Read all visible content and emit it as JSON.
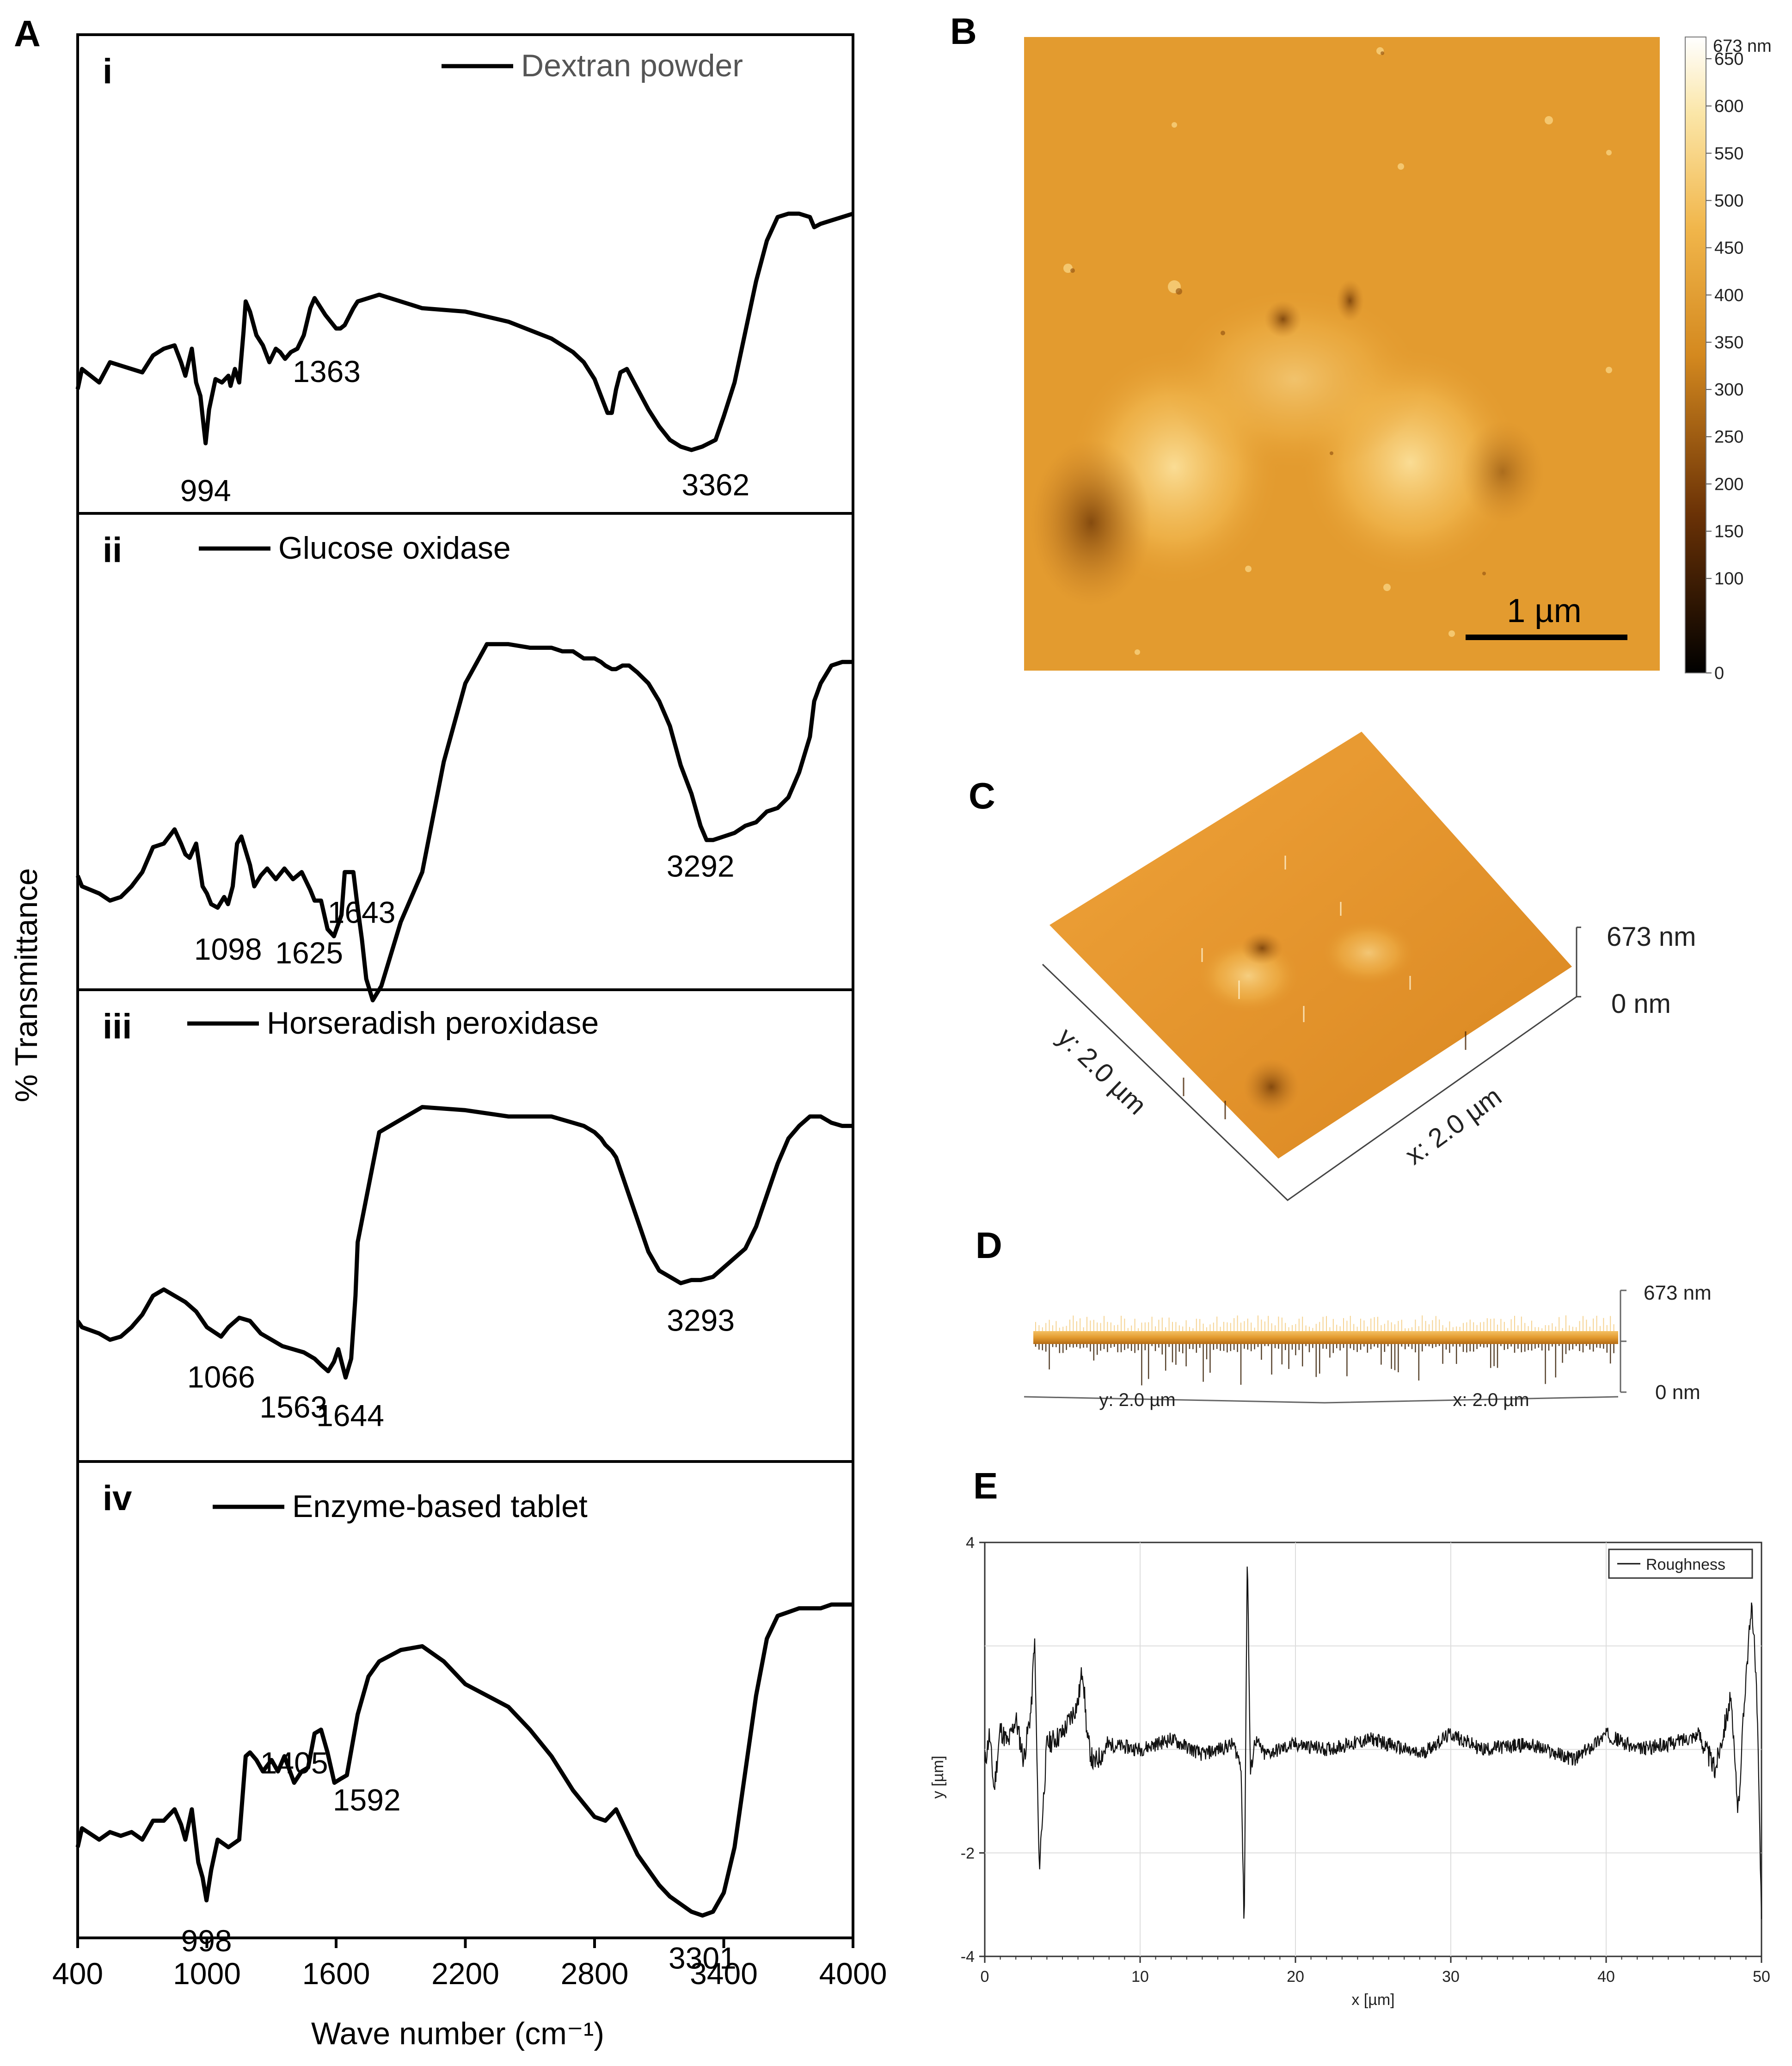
{
  "panel_labels": {
    "A": "A",
    "B": "B",
    "C": "C",
    "D": "D",
    "E": "E"
  },
  "ftir": {
    "ylabel": "% Transmittance",
    "xlabel": "Wave number (cm⁻¹)",
    "xlim": [
      400,
      4000
    ],
    "xticks": [
      "400",
      "1000",
      "1600",
      "2200",
      "2800",
      "3400",
      "4000"
    ],
    "spectra": [
      {
        "roman": "i",
        "legend": "Dextran powder",
        "peaks": [
          {
            "wn": 994,
            "label": "994"
          },
          {
            "wn": 1363,
            "label": "1363"
          },
          {
            "wn": 3362,
            "label": "3362"
          }
        ]
      },
      {
        "roman": "ii",
        "legend": "Glucose oxidase",
        "peaks": [
          {
            "wn": 1098,
            "label": "1098"
          },
          {
            "wn": 1625,
            "label": "1625"
          },
          {
            "wn": 1643,
            "label": "1643"
          },
          {
            "wn": 3292,
            "label": "3292"
          }
        ]
      },
      {
        "roman": "iii",
        "legend": "Horseradish peroxidase",
        "peaks": [
          {
            "wn": 1066,
            "label": "1066"
          },
          {
            "wn": 1563,
            "label": "1563"
          },
          {
            "wn": 1644,
            "label": "1644"
          },
          {
            "wn": 3293,
            "label": "3293"
          }
        ]
      },
      {
        "roman": "iv",
        "legend": "Enzyme-based tablet",
        "peaks": [
          {
            "wn": 998,
            "label": "998"
          },
          {
            "wn": 1405,
            "label": "1405"
          },
          {
            "wn": 1592,
            "label": "1592"
          },
          {
            "wn": 3301,
            "label": "3301"
          }
        ]
      }
    ]
  },
  "afm2d": {
    "scalebar": "1 µm",
    "colorbar_max": "673 nm",
    "colorbar_ticks": [
      "650",
      "600",
      "550",
      "500",
      "450",
      "400",
      "350",
      "300",
      "250",
      "200",
      "150",
      "100",
      "0"
    ]
  },
  "afm3d": {
    "z_max": "673 nm",
    "z_min": "0 nm",
    "y_axis": "y: 2.0 µm",
    "x_axis": "x: 2.0 µm"
  },
  "afm_side": {
    "z_max": "673 nm",
    "z_min": "0 nm",
    "y_axis": "y: 2.0 µm",
    "x_axis": "x: 2.0 µm"
  },
  "colors": {
    "afm_base": "#e39b2f",
    "afm_light": "#f6c867",
    "afm_dark": "#8a4f12",
    "line": "#000000"
  },
  "chart_data": [
    {
      "type": "line",
      "title": "FTIR spectra",
      "xlabel": "Wave number (cm⁻¹)",
      "ylabel": "% Transmittance",
      "xlim": [
        400,
        4000
      ],
      "series": [
        {
          "name": "Dextran powder",
          "x": [
            400,
            420,
            500,
            550,
            600,
            650,
            700,
            750,
            800,
            850,
            880,
            900,
            930,
            950,
            970,
            980,
            994,
            1010,
            1040,
            1070,
            1100,
            1110,
            1130,
            1150,
            1170,
            1180,
            1200,
            1230,
            1260,
            1290,
            1320,
            1340,
            1363,
            1390,
            1420,
            1450,
            1480,
            1500,
            1550,
            1600,
            1620,
            1640,
            1680,
            1700,
            1800,
            2000,
            2200,
            2400,
            2600,
            2700,
            2750,
            2800,
            2830,
            2860,
            2880,
            2900,
            2920,
            2950,
            3000,
            3050,
            3100,
            3150,
            3200,
            3250,
            3300,
            3362,
            3400,
            3450,
            3500,
            3550,
            3600,
            3650,
            3700,
            3750,
            3800,
            3820,
            3850,
            3900,
            3950,
            4000
          ],
          "y": [
            82,
            76,
            80,
            74,
            75,
            76,
            77,
            72,
            70,
            69,
            74,
            78,
            70,
            80,
            84,
            90,
            98,
            88,
            79,
            80,
            78,
            81,
            76,
            80,
            65,
            56,
            59,
            66,
            69,
            74,
            70,
            71,
            73,
            71,
            70,
            66,
            58,
            55,
            60,
            64,
            64,
            63,
            58,
            56,
            54,
            58,
            59,
            62,
            67,
            71,
            74,
            79,
            84,
            89,
            89,
            82,
            77,
            76,
            82,
            88,
            93,
            97,
            99,
            100,
            99,
            97,
            90,
            80,
            65,
            50,
            38,
            31,
            30,
            30,
            31,
            34,
            33,
            32,
            31,
            30
          ]
        },
        {
          "name": "Glucose oxidase",
          "x": [
            400,
            420,
            500,
            550,
            600,
            650,
            700,
            750,
            800,
            850,
            880,
            900,
            920,
            950,
            980,
            1000,
            1020,
            1050,
            1080,
            1098,
            1120,
            1140,
            1160,
            1180,
            1200,
            1220,
            1250,
            1280,
            1320,
            1360,
            1400,
            1440,
            1480,
            1500,
            1530,
            1560,
            1590,
            1625,
            1640,
            1680,
            1700,
            1720,
            1740,
            1770,
            1810,
            1900,
            2000,
            2100,
            2200,
            2300,
            2400,
            2500,
            2550,
            2600,
            2650,
            2700,
            2750,
            2780,
            2800,
            2830,
            2850,
            2880,
            2900,
            2930,
            2960,
            3000,
            3050,
            3100,
            3150,
            3200,
            3250,
            3292,
            3320,
            3350,
            3400,
            3450,
            3500,
            3550,
            3600,
            3650,
            3700,
            3750,
            3800,
            3820,
            3850,
            3900,
            3950,
            4000
          ],
          "y": [
            79,
            82,
            84,
            86,
            85,
            82,
            78,
            71,
            70,
            66,
            70,
            73,
            74,
            70,
            82,
            84,
            87,
            88,
            85,
            87,
            82,
            70,
            68,
            72,
            76,
            82,
            79,
            77,
            80,
            77,
            80,
            78,
            83,
            86,
            86,
            94,
            96,
            90,
            78,
            78,
            88,
            97,
            108,
            114,
            110,
            92,
            78,
            47,
            25,
            14,
            14,
            15,
            15,
            15,
            16,
            16,
            18,
            18,
            18,
            19,
            20,
            21,
            21,
            20,
            20,
            22,
            25,
            30,
            37,
            48,
            56,
            65,
            69,
            69,
            68,
            67,
            65,
            64,
            61,
            60,
            57,
            50,
            40,
            30,
            25,
            20,
            19,
            19
          ]
        },
        {
          "name": "Horseradish peroxidase",
          "x": [
            400,
            420,
            500,
            550,
            600,
            650,
            700,
            750,
            800,
            850,
            900,
            950,
            1000,
            1066,
            1100,
            1150,
            1200,
            1250,
            1300,
            1350,
            1400,
            1450,
            1500,
            1530,
            1563,
            1590,
            1610,
            1644,
            1670,
            1690,
            1700,
            1800,
            2000,
            2200,
            2400,
            2600,
            2700,
            2750,
            2800,
            2830,
            2850,
            2880,
            2900,
            2930,
            2960,
            3000,
            3050,
            3100,
            3150,
            3200,
            3250,
            3293,
            3350,
            3400,
            3450,
            3500,
            3550,
            3600,
            3650,
            3700,
            3750,
            3800,
            3850,
            3900,
            3950,
            4000
          ],
          "y": [
            80,
            82,
            84,
            86,
            85,
            82,
            78,
            72,
            70,
            72,
            74,
            77,
            82,
            85,
            82,
            79,
            80,
            84,
            86,
            88,
            89,
            90,
            92,
            94,
            96,
            93,
            89,
            98,
            92,
            72,
            55,
            20,
            12,
            13,
            15,
            15,
            17,
            18,
            20,
            22,
            24,
            26,
            28,
            34,
            40,
            48,
            58,
            64,
            66,
            68,
            67,
            67,
            66,
            63,
            60,
            57,
            50,
            40,
            30,
            22,
            18,
            15,
            15,
            17,
            18,
            18
          ]
        },
        {
          "name": "Enzyme-based tablet",
          "x": [
            400,
            420,
            500,
            550,
            600,
            650,
            700,
            750,
            800,
            850,
            880,
            900,
            930,
            960,
            980,
            998,
            1020,
            1050,
            1100,
            1150,
            1180,
            1200,
            1230,
            1260,
            1300,
            1330,
            1360,
            1405,
            1440,
            1470,
            1500,
            1530,
            1560,
            1592,
            1620,
            1650,
            1700,
            1750,
            1800,
            1900,
            2000,
            2100,
            2200,
            2300,
            2400,
            2500,
            2600,
            2700,
            2800,
            2850,
            2900,
            2950,
            3000,
            3050,
            3100,
            3150,
            3200,
            3250,
            3301,
            3350,
            3400,
            3450,
            3500,
            3550,
            3600,
            3650,
            3700,
            3750,
            3800,
            3850,
            3900,
            3950,
            4000
          ],
          "y": [
            80,
            75,
            78,
            76,
            77,
            76,
            78,
            73,
            73,
            70,
            74,
            78,
            70,
            84,
            88,
            94,
            86,
            78,
            80,
            78,
            56,
            55,
            57,
            60,
            57,
            60,
            56,
            63,
            60,
            59,
            50,
            49,
            55,
            63,
            62,
            61,
            45,
            35,
            31,
            28,
            27,
            31,
            37,
            40,
            43,
            49,
            56,
            65,
            72,
            73,
            70,
            76,
            82,
            86,
            90,
            93,
            95,
            97,
            98,
            97,
            92,
            80,
            60,
            40,
            25,
            19,
            18,
            17,
            17,
            17,
            16,
            16,
            16
          ]
        }
      ]
    },
    {
      "type": "line",
      "title": "",
      "xlabel": "x [µm]",
      "ylabel": "y [µm]",
      "xlim": [
        0,
        50
      ],
      "ylim": [
        -4,
        4
      ],
      "xticks": [
        "0",
        "10",
        "20",
        "30",
        "40",
        "50"
      ],
      "yticks": [
        "4",
        "-2",
        "-4"
      ],
      "legend": "top-right",
      "series": [
        {
          "name": "Roughness",
          "x": [
            0,
            0.3,
            0.6,
            1.0,
            1.5,
            2.0,
            2.5,
            3.0,
            3.2,
            3.5,
            4.0,
            5.0,
            6.0,
            6.3,
            6.6,
            7.0,
            8.0,
            10.0,
            12.0,
            14.0,
            16.0,
            16.5,
            16.7,
            16.9,
            17.1,
            17.4,
            18.0,
            20.0,
            22.0,
            25.0,
            28.0,
            30.0,
            32.0,
            35.0,
            38.0,
            40.0,
            42.0,
            44.0,
            46.0,
            47.0,
            48.0,
            48.5,
            49.0,
            49.4,
            49.7,
            50.0
          ],
          "y": [
            -0.3,
            0.3,
            -0.8,
            0.4,
            0.1,
            0.6,
            -0.2,
            0.8,
            2.2,
            -2.3,
            0.1,
            0.3,
            0.9,
            1.6,
            0.2,
            -0.3,
            0.1,
            0.0,
            0.2,
            -0.1,
            0.1,
            -0.3,
            -3.5,
            3.9,
            -0.5,
            0.2,
            -0.1,
            0.1,
            0.0,
            0.2,
            -0.1,
            0.3,
            0.0,
            0.1,
            -0.2,
            0.3,
            0.0,
            0.1,
            0.3,
            -0.4,
            1.0,
            -1.2,
            1.5,
            2.8,
            1.0,
            -3.2
          ]
        }
      ]
    }
  ]
}
